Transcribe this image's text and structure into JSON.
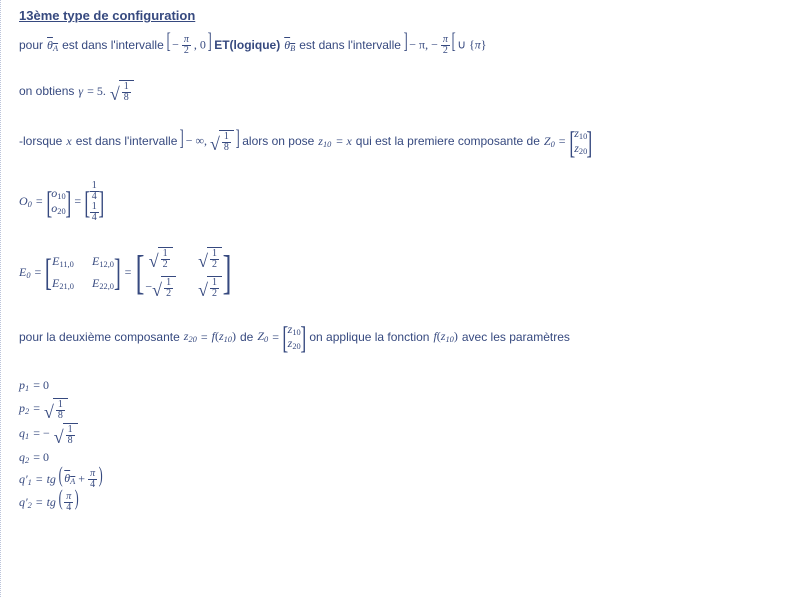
{
  "heading": "13ème type de configuration",
  "line1": {
    "t1": "pour ",
    "thetaA": "θ",
    "subA": "A",
    "t2": " est dans l'intervalle ",
    "lb": "[",
    "neg": "−",
    "pi": "π",
    "two": "2",
    "comma": ", 0",
    "rb": "]",
    "et": "ET(logique)",
    "thetaB": "θ",
    "subB": "B",
    "t3": " est dans l'intervalle ",
    "lb2": "]",
    "minus_pi": " − π, −",
    "rb2": "[",
    "cup": "∪",
    "lbrace": "{",
    "rbrace": "}"
  },
  "line2": {
    "t1": "on obtiens ",
    "gamma": "γ",
    "eq": " = 5.",
    "n": "1",
    "d": "8"
  },
  "line3": {
    "t1": "-lorsque ",
    "x": "x",
    "t2": " est dans l'intervalle ",
    "lb": "]",
    "neginf": " − ∞, ",
    "n": "1",
    "d": "8",
    "rb": "]",
    "t3": " alors on pose ",
    "z10": "z",
    "z10s": "10",
    "eqx": " = x",
    "t4": " qui est la premiere composante de ",
    "Z0": "Z",
    "Z0s": "0",
    "eq": " = ",
    "r1": "z",
    "r1s": "10",
    "r2": "z",
    "r2s": "20"
  },
  "line4": {
    "O0": "O",
    "O0s": "0",
    "eq": " = ",
    "o10": "o",
    "o10s": "10",
    "o20": "o",
    "o20s": "20",
    "eq2": " = ",
    "n": "1",
    "d": "4"
  },
  "line5": {
    "E0": "E",
    "E0s": "0",
    "eq": " = ",
    "e11": "E",
    "e11s": "11,0",
    "e12": "E",
    "e12s": "12,0",
    "e21": "E",
    "e21s": "21,0",
    "e22": "E",
    "e22s": "22,0",
    "eq2": " = ",
    "n": "1",
    "d": "2",
    "neg": "−"
  },
  "line6": {
    "t1": "pour la deuxième composante ",
    "z20": "z",
    "z20s": "20",
    "eq": " = ",
    "f": "f",
    "lp": "(",
    "z10": "z",
    "z10s": "10",
    "rp": ")",
    "de": " de ",
    "Z0": "Z",
    "Z0s": "0",
    "eq2": " = ",
    "r1": "z",
    "r1s": "10",
    "r2": "z",
    "r2s": "20",
    "t2": " on applique la fonction ",
    "t3": " avec les paramètres"
  },
  "params": {
    "p1l": "p",
    "p1s": "1",
    "p1v": " = 0",
    "p2l": "p",
    "p2s": "2",
    "p2v": " = ",
    "p2n": "1",
    "p2d": "8",
    "q1l": "q",
    "q1s": "1",
    "q1v": " = −",
    "q1n": "1",
    "q1d": "8",
    "q2l": "q",
    "q2s": "2",
    "q2v": " = 0",
    "q1pl": "q′",
    "q1ps": "1",
    "q1pv": " = ",
    "tg": "tg",
    "lp": "(",
    "rp": ")",
    "thetaA": "θ",
    "subA": "A",
    "plus": " + ",
    "pi": "π",
    "four": "4",
    "q2pl": "q′",
    "q2ps": "2",
    "q2pv": " = "
  },
  "colors": {
    "text": "#36497f",
    "bg": "#ffffff",
    "border": "#bcc4da"
  }
}
